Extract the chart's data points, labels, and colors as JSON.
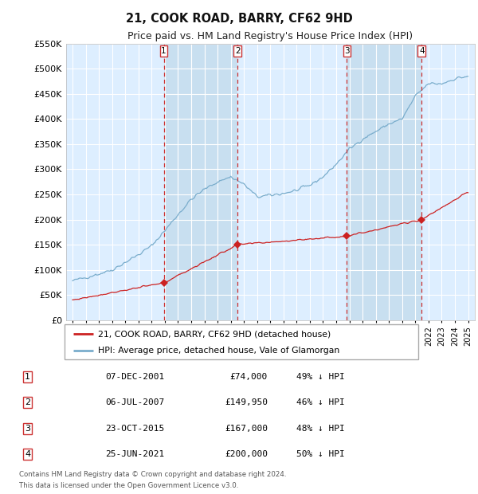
{
  "title": "21, COOK ROAD, BARRY, CF62 9HD",
  "subtitle": "Price paid vs. HM Land Registry's House Price Index (HPI)",
  "footer1": "Contains HM Land Registry data © Crown copyright and database right 2024.",
  "footer2": "This data is licensed under the Open Government Licence v3.0.",
  "legend_house": "21, COOK ROAD, BARRY, CF62 9HD (detached house)",
  "legend_hpi": "HPI: Average price, detached house, Vale of Glamorgan",
  "ylim": [
    0,
    550000
  ],
  "yticks": [
    0,
    50000,
    100000,
    150000,
    200000,
    250000,
    300000,
    350000,
    400000,
    450000,
    500000,
    550000
  ],
  "ytick_labels": [
    "£0",
    "£50K",
    "£100K",
    "£150K",
    "£200K",
    "£250K",
    "£300K",
    "£350K",
    "£400K",
    "£450K",
    "£500K",
    "£550K"
  ],
  "xlim": [
    1994.5,
    2025.5
  ],
  "sales": [
    {
      "date": "07-DEC-2001",
      "price": 74000,
      "label": "1",
      "pct": "49% ↓ HPI",
      "x": 2001.92
    },
    {
      "date": "06-JUL-2007",
      "price": 149950,
      "label": "2",
      "pct": "46% ↓ HPI",
      "x": 2007.51
    },
    {
      "date": "23-OCT-2015",
      "price": 167000,
      "label": "3",
      "pct": "48% ↓ HPI",
      "x": 2015.81
    },
    {
      "date": "25-JUN-2021",
      "price": 200000,
      "label": "4",
      "pct": "50% ↓ HPI",
      "x": 2021.48
    }
  ],
  "hpi_color": "#7aadcc",
  "house_color": "#cc2222",
  "vline_color": "#cc3333",
  "shade_color": "#c8dff0",
  "bg_color": "#ddeeff",
  "grid_color": "#ffffff",
  "plot_bg": "#ddeeff",
  "hpi_anchors_x": [
    1995,
    1996,
    1997,
    1998,
    1999,
    2000,
    2001,
    2002,
    2003,
    2004,
    2005,
    2006,
    2007,
    2008,
    2009,
    2010,
    2011,
    2012,
    2013,
    2014,
    2015,
    2016,
    2017,
    2018,
    2019,
    2020,
    2021,
    2022,
    2023,
    2024,
    2025
  ],
  "hpi_anchors_y": [
    78000,
    85000,
    92000,
    100000,
    115000,
    130000,
    148000,
    178000,
    210000,
    240000,
    260000,
    275000,
    285000,
    270000,
    245000,
    248000,
    252000,
    258000,
    268000,
    285000,
    310000,
    340000,
    360000,
    375000,
    390000,
    400000,
    445000,
    470000,
    470000,
    480000,
    485000
  ],
  "house_anchors_x": [
    1995,
    2001.92,
    2007.51,
    2015.81,
    2021.48,
    2024.8
  ],
  "house_anchors_y": [
    40000,
    74000,
    149950,
    167000,
    200000,
    252000
  ]
}
